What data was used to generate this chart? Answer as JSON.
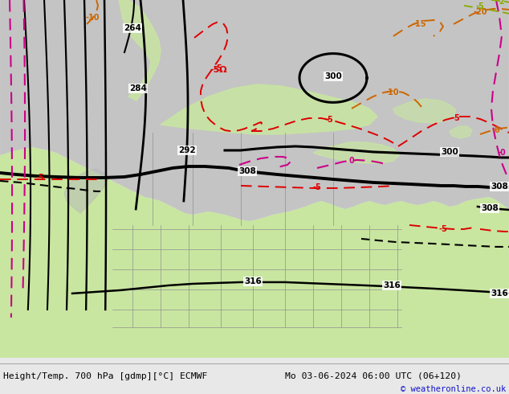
{
  "title_left": "Height/Temp. 700 hPa [gdmp][°C] ECMWF",
  "title_right": "Mo 03-06-2024 06:00 UTC (06+120)",
  "copyright": "© weatheronline.co.uk",
  "fig_width": 6.34,
  "fig_height": 4.9,
  "dpi": 100,
  "map_bg": "#dcdcdc",
  "warm_green": "#c8e8a0",
  "cold_grey": "#c0c0c0",
  "bottom_bg": "#e8e8e8",
  "border_color": "#888888"
}
